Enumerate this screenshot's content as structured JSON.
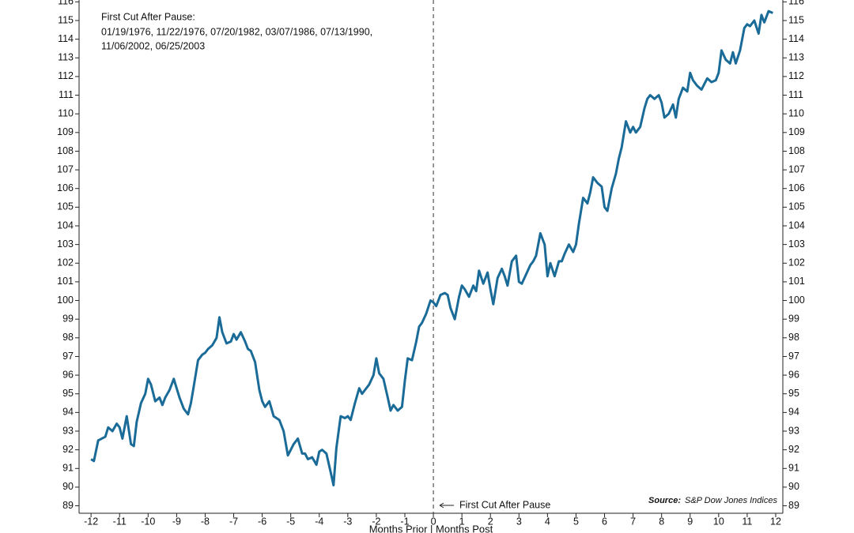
{
  "chart_data": {
    "type": "line",
    "annotation_title": "First Cut After Pause:",
    "annotation_lines": [
      "01/19/1976, 11/22/1976, 07/20/1982, 03/07/1986, 07/13/1990,",
      "11/06/2002, 06/25/2003"
    ],
    "marker_label": "First Cut After Pause",
    "source_label": "Source:",
    "source": "S&P Dow Jones Indices",
    "xlabel": "Months Prior | Months Post",
    "vline": 0,
    "xlim": [
      -12.42,
      12.25
    ],
    "ylim": [
      88.6,
      116.1
    ],
    "xticks": [
      -12,
      -11,
      -10,
      -9,
      -8,
      -7,
      -6,
      -5,
      -4,
      -3,
      -2,
      -1,
      0,
      1,
      2,
      3,
      4,
      5,
      6,
      7,
      8,
      9,
      10,
      11,
      12
    ],
    "yticks": [
      89,
      90,
      91,
      92,
      93,
      94,
      95,
      96,
      97,
      98,
      99,
      100,
      101,
      102,
      103,
      104,
      105,
      106,
      107,
      108,
      109,
      110,
      111,
      112,
      113,
      114,
      115,
      116
    ],
    "x": [
      -12,
      -11.9,
      -11.75,
      -11.5,
      -11.4,
      -11.25,
      -11.1,
      -11,
      -10.9,
      -10.75,
      -10.6,
      -10.5,
      -10.4,
      -10.25,
      -10.1,
      -10,
      -9.9,
      -9.75,
      -9.6,
      -9.5,
      -9.4,
      -9.25,
      -9.1,
      -9,
      -8.9,
      -8.75,
      -8.6,
      -8.5,
      -8.4,
      -8.25,
      -8.1,
      -8,
      -7.9,
      -7.75,
      -7.6,
      -7.5,
      -7.4,
      -7.25,
      -7.1,
      -7,
      -6.9,
      -6.75,
      -6.6,
      -6.5,
      -6.4,
      -6.25,
      -6.1,
      -6,
      -5.9,
      -5.75,
      -5.6,
      -5.5,
      -5.4,
      -5.25,
      -5.1,
      -5,
      -4.9,
      -4.75,
      -4.6,
      -4.5,
      -4.4,
      -4.25,
      -4.1,
      -4,
      -3.9,
      -3.75,
      -3.6,
      -3.5,
      -3.4,
      -3.25,
      -3.1,
      -3,
      -2.9,
      -2.75,
      -2.6,
      -2.5,
      -2.4,
      -2.25,
      -2.1,
      -2,
      -1.9,
      -1.75,
      -1.6,
      -1.5,
      -1.4,
      -1.25,
      -1.1,
      -1,
      -0.9,
      -0.75,
      -0.6,
      -0.5,
      -0.4,
      -0.25,
      -0.1,
      0,
      0.1,
      0.25,
      0.4,
      0.5,
      0.6,
      0.75,
      0.9,
      1,
      1.1,
      1.25,
      1.4,
      1.5,
      1.6,
      1.75,
      1.9,
      2,
      2.1,
      2.25,
      2.4,
      2.5,
      2.6,
      2.75,
      2.9,
      3,
      3.1,
      3.25,
      3.4,
      3.5,
      3.6,
      3.75,
      3.9,
      4,
      4.1,
      4.25,
      4.4,
      4.5,
      4.6,
      4.75,
      4.9,
      5,
      5.1,
      5.25,
      5.4,
      5.5,
      5.6,
      5.75,
      5.9,
      6,
      6.1,
      6.25,
      6.4,
      6.5,
      6.6,
      6.75,
      6.9,
      7,
      7.1,
      7.25,
      7.4,
      7.5,
      7.6,
      7.75,
      7.9,
      8,
      8.1,
      8.25,
      8.4,
      8.5,
      8.6,
      8.75,
      8.9,
      9,
      9.1,
      9.25,
      9.4,
      9.5,
      9.6,
      9.75,
      9.9,
      10,
      10.1,
      10.25,
      10.4,
      10.5,
      10.6,
      10.75,
      10.9,
      11,
      11.1,
      11.25,
      11.4,
      11.5,
      11.6,
      11.75,
      11.9
    ],
    "series": [
      {
        "color": "#1a6b97",
        "values": [
          91.5,
          91.4,
          92.5,
          92.7,
          93.2,
          93.0,
          93.4,
          93.2,
          92.6,
          93.8,
          92.3,
          92.2,
          93.5,
          94.5,
          95.0,
          95.8,
          95.5,
          94.6,
          94.8,
          94.4,
          94.8,
          95.2,
          95.8,
          95.3,
          94.8,
          94.2,
          93.9,
          94.5,
          95.4,
          96.8,
          97.1,
          97.2,
          97.4,
          97.6,
          98.0,
          99.1,
          98.3,
          97.7,
          97.8,
          98.2,
          97.9,
          98.3,
          97.8,
          97.4,
          97.3,
          96.7,
          95.2,
          94.6,
          94.3,
          94.6,
          93.8,
          93.7,
          93.6,
          93.0,
          91.7,
          92.0,
          92.3,
          92.6,
          91.8,
          91.8,
          91.5,
          91.6,
          91.2,
          91.9,
          92.0,
          91.8,
          90.8,
          90.1,
          92.1,
          93.8,
          93.7,
          93.8,
          93.6,
          94.5,
          95.3,
          95.0,
          95.2,
          95.5,
          96.0,
          96.9,
          96.1,
          95.8,
          94.8,
          94.1,
          94.4,
          94.1,
          94.3,
          95.7,
          96.9,
          96.8,
          97.8,
          98.6,
          98.8,
          99.3,
          100.0,
          99.9,
          99.7,
          100.3,
          100.4,
          100.3,
          99.6,
          99.0,
          100.2,
          100.8,
          100.6,
          100.2,
          100.8,
          100.5,
          101.6,
          100.9,
          101.5,
          100.6,
          99.8,
          101.2,
          101.7,
          101.3,
          100.8,
          102.1,
          102.4,
          101.0,
          100.9,
          101.4,
          101.9,
          102.1,
          102.4,
          103.6,
          103.0,
          101.3,
          102.0,
          101.3,
          102.1,
          102.1,
          102.5,
          103.0,
          102.6,
          103.0,
          104.1,
          105.5,
          105.2,
          105.8,
          106.6,
          106.3,
          106.1,
          105.0,
          104.8,
          106.0,
          106.8,
          107.6,
          108.2,
          109.6,
          109.0,
          109.3,
          109.0,
          109.3,
          110.3,
          110.8,
          111.0,
          110.8,
          111.0,
          110.6,
          109.8,
          110.0,
          110.5,
          109.8,
          110.8,
          111.4,
          111.2,
          112.2,
          111.8,
          111.5,
          111.3,
          111.6,
          111.9,
          111.7,
          111.8,
          112.2,
          113.4,
          112.9,
          112.7,
          113.3,
          112.7,
          113.4,
          114.6,
          114.8,
          114.7,
          115.0,
          114.3,
          115.3,
          114.9,
          115.5,
          115.4
        ]
      }
    ]
  }
}
